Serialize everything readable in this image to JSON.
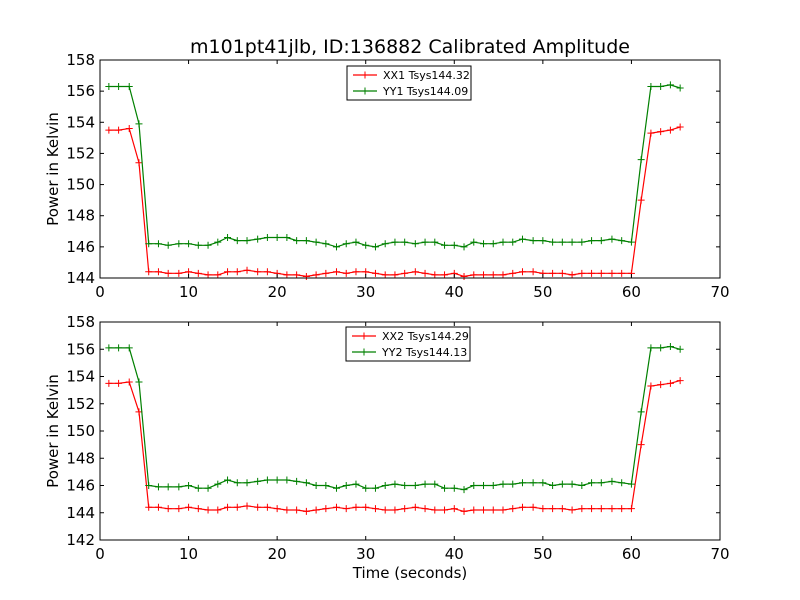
{
  "figure": {
    "title": "m101pt41jlb, ID:136882 Calibrated Amplitude",
    "background": "#ffffff"
  },
  "colors": {
    "xx": "#ff0000",
    "yy": "#008000",
    "axis": "#000000"
  },
  "chart_data": [
    {
      "type": "line",
      "title": "m101pt41jlb, ID:136882 Calibrated Amplitude",
      "xlabel": "",
      "ylabel": "Power in Kelvin",
      "xlim": [
        0,
        70
      ],
      "ylim": [
        144,
        158
      ],
      "xticks": [
        0,
        10,
        20,
        30,
        40,
        50,
        60,
        70
      ],
      "yticks": [
        144,
        146,
        148,
        150,
        152,
        154,
        156,
        158
      ],
      "grid": false,
      "legend_position": "top-center",
      "x": [
        1.0,
        2.1,
        3.3,
        4.4,
        5.5,
        6.6,
        7.7,
        8.9,
        10.0,
        11.1,
        12.2,
        13.3,
        14.4,
        15.5,
        16.6,
        17.8,
        18.9,
        20.0,
        21.1,
        22.2,
        23.3,
        24.4,
        25.5,
        26.7,
        27.8,
        28.9,
        30.0,
        31.1,
        32.2,
        33.3,
        34.4,
        35.6,
        36.7,
        37.8,
        38.9,
        40.0,
        41.1,
        42.2,
        43.3,
        44.4,
        45.5,
        46.6,
        47.7,
        48.9,
        50.0,
        51.1,
        52.2,
        53.3,
        54.4,
        55.5,
        56.6,
        57.8,
        58.9,
        60.0,
        61.1,
        62.2,
        63.3,
        64.4,
        65.5
      ],
      "series": [
        {
          "name": "XX1 Tsys144.32",
          "color": "#ff0000",
          "values": [
            153.5,
            153.5,
            153.6,
            151.4,
            144.4,
            144.4,
            144.3,
            144.3,
            144.4,
            144.3,
            144.2,
            144.2,
            144.4,
            144.4,
            144.5,
            144.4,
            144.4,
            144.3,
            144.2,
            144.2,
            144.1,
            144.2,
            144.3,
            144.4,
            144.3,
            144.4,
            144.4,
            144.3,
            144.2,
            144.2,
            144.3,
            144.4,
            144.3,
            144.2,
            144.2,
            144.3,
            144.1,
            144.2,
            144.2,
            144.2,
            144.2,
            144.3,
            144.4,
            144.4,
            144.3,
            144.3,
            144.3,
            144.2,
            144.3,
            144.3,
            144.3,
            144.3,
            144.3,
            144.3,
            149.0,
            153.3,
            153.4,
            153.5,
            153.7
          ]
        },
        {
          "name": "YY1 Tsys144.09",
          "color": "#008000",
          "values": [
            156.3,
            156.3,
            156.3,
            153.9,
            146.2,
            146.2,
            146.1,
            146.2,
            146.2,
            146.1,
            146.1,
            146.3,
            146.6,
            146.4,
            146.4,
            146.5,
            146.6,
            146.6,
            146.6,
            146.4,
            146.4,
            146.3,
            146.2,
            146.0,
            146.2,
            146.3,
            146.1,
            146.0,
            146.2,
            146.3,
            146.3,
            146.2,
            146.3,
            146.3,
            146.1,
            146.1,
            146.0,
            146.3,
            146.2,
            146.2,
            146.3,
            146.3,
            146.5,
            146.4,
            146.4,
            146.3,
            146.3,
            146.3,
            146.3,
            146.4,
            146.4,
            146.5,
            146.4,
            146.3,
            151.6,
            156.3,
            156.3,
            156.4,
            156.2
          ]
        }
      ]
    },
    {
      "type": "line",
      "title": "",
      "xlabel": "Time (seconds)",
      "ylabel": "Power in Kelvin",
      "xlim": [
        0,
        70
      ],
      "ylim": [
        142,
        158
      ],
      "xticks": [
        0,
        10,
        20,
        30,
        40,
        50,
        60,
        70
      ],
      "yticks": [
        142,
        144,
        146,
        148,
        150,
        152,
        154,
        156,
        158
      ],
      "grid": false,
      "legend_position": "top-center",
      "x": [
        1.0,
        2.1,
        3.3,
        4.4,
        5.5,
        6.6,
        7.7,
        8.9,
        10.0,
        11.1,
        12.2,
        13.3,
        14.4,
        15.5,
        16.6,
        17.8,
        18.9,
        20.0,
        21.1,
        22.2,
        23.3,
        24.4,
        25.5,
        26.7,
        27.8,
        28.9,
        30.0,
        31.1,
        32.2,
        33.3,
        34.4,
        35.6,
        36.7,
        37.8,
        38.9,
        40.0,
        41.1,
        42.2,
        43.3,
        44.4,
        45.5,
        46.6,
        47.7,
        48.9,
        50.0,
        51.1,
        52.2,
        53.3,
        54.4,
        55.5,
        56.6,
        57.8,
        58.9,
        60.0,
        61.1,
        62.2,
        63.3,
        64.4,
        65.5
      ],
      "series": [
        {
          "name": "XX2 Tsys144.29",
          "color": "#ff0000",
          "values": [
            153.5,
            153.5,
            153.6,
            151.4,
            144.4,
            144.4,
            144.3,
            144.3,
            144.4,
            144.3,
            144.2,
            144.2,
            144.4,
            144.4,
            144.5,
            144.4,
            144.4,
            144.3,
            144.2,
            144.2,
            144.1,
            144.2,
            144.3,
            144.4,
            144.3,
            144.4,
            144.4,
            144.3,
            144.2,
            144.2,
            144.3,
            144.4,
            144.3,
            144.2,
            144.2,
            144.3,
            144.1,
            144.2,
            144.2,
            144.2,
            144.2,
            144.3,
            144.4,
            144.4,
            144.3,
            144.3,
            144.3,
            144.2,
            144.3,
            144.3,
            144.3,
            144.3,
            144.3,
            144.3,
            149.0,
            153.3,
            153.4,
            153.5,
            153.7
          ]
        },
        {
          "name": "YY2 Tsys144.13",
          "color": "#008000",
          "values": [
            156.1,
            156.1,
            156.1,
            153.6,
            146.0,
            145.9,
            145.9,
            145.9,
            146.0,
            145.8,
            145.8,
            146.1,
            146.4,
            146.2,
            146.2,
            146.3,
            146.4,
            146.4,
            146.4,
            146.3,
            146.2,
            146.0,
            146.0,
            145.8,
            146.0,
            146.1,
            145.8,
            145.8,
            146.0,
            146.1,
            146.0,
            146.0,
            146.1,
            146.1,
            145.8,
            145.8,
            145.7,
            146.0,
            146.0,
            146.0,
            146.1,
            146.1,
            146.2,
            146.2,
            146.2,
            146.0,
            146.1,
            146.1,
            146.0,
            146.2,
            146.2,
            146.3,
            146.2,
            146.1,
            151.4,
            156.1,
            156.1,
            156.2,
            156.0
          ]
        }
      ]
    }
  ]
}
